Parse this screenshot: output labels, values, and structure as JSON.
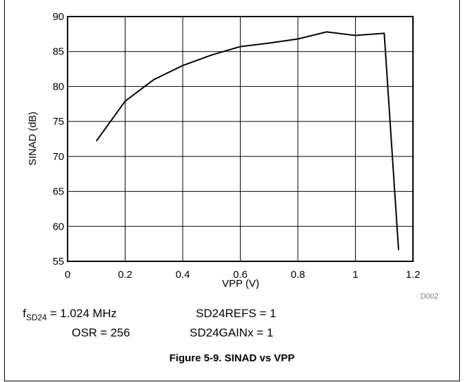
{
  "chart_data": {
    "type": "line",
    "xlabel": "VPP (V)",
    "ylabel": "SINAD (dB)",
    "xlim": [
      0,
      1.2
    ],
    "ylim": [
      55,
      90
    ],
    "xticks": [
      0,
      0.2,
      0.4,
      0.6,
      0.8,
      1,
      1.2
    ],
    "yticks": [
      55,
      60,
      65,
      70,
      75,
      80,
      85,
      90
    ],
    "grid": true,
    "series": [
      {
        "x": [
          0.1,
          0.2,
          0.3,
          0.4,
          0.5,
          0.6,
          0.7,
          0.8,
          0.9,
          1.0,
          1.1,
          1.15
        ],
        "y": [
          72.2,
          77.9,
          81.0,
          83.0,
          84.5,
          85.7,
          86.2,
          86.8,
          87.8,
          87.3,
          87.6,
          56.6
        ]
      }
    ],
    "annotation": "D002"
  },
  "conditions": {
    "f_prefix": "f",
    "f_sub": "SD24",
    "f_value": " = 1.024 MHz",
    "refs": "SD24REFS = 1",
    "osr": "OSR = 256",
    "gain": "SD24GAINx = 1"
  },
  "caption": "Figure 5-9. SINAD vs VPP"
}
